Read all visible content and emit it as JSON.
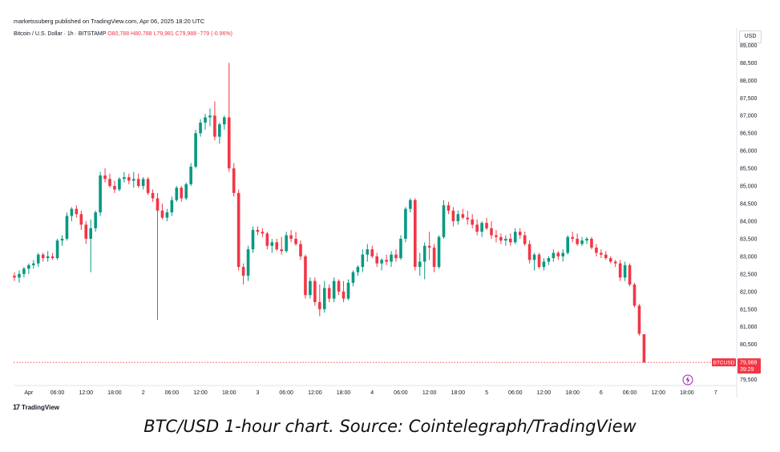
{
  "header": {
    "publisher": "marketssuberg published on TradingView.com, Apr 06, 2025 18:20 UTC",
    "symbol": "Bitcoin / U.S. Dollar · 1h · BITSTAMP",
    "open": "O80,788",
    "high": "H80,788",
    "low": "L79,981",
    "close": "C79,988",
    "change": "-779 (-0.96%)",
    "currency": "USD"
  },
  "footer": {
    "logo_text": "TradingView",
    "caption": "BTC/USD 1-hour chart. Source: Cointelegraph/TradingView"
  },
  "colors": {
    "up": "#089981",
    "down": "#f23645",
    "grid": "#f0f3fa",
    "text": "#131722"
  },
  "chart_data": {
    "type": "candlestick",
    "symbol": "BTCUSD",
    "interval": "1h",
    "ylim": [
      79400,
      89100
    ],
    "y_ticks": [
      79500,
      80500,
      81000,
      81500,
      82000,
      82500,
      83000,
      83500,
      84000,
      84500,
      85000,
      85500,
      86000,
      86500,
      87000,
      87500,
      88000,
      88500,
      89000
    ],
    "y_tick_labels": [
      "79,500",
      "80,500",
      "81,000",
      "81,500",
      "82,000",
      "82,500",
      "83,000",
      "83,500",
      "84,000",
      "84,500",
      "85,000",
      "85,500",
      "86,000",
      "86,500",
      "87,000",
      "87,500",
      "88,000",
      "88,500",
      "89,000"
    ],
    "x_tick_labels": [
      "Apr",
      "06:00",
      "12:00",
      "18:00",
      "2",
      "06:00",
      "12:00",
      "18:00",
      "3",
      "06:00",
      "12:00",
      "18:00",
      "4",
      "06:00",
      "12:00",
      "18:00",
      "5",
      "06:00",
      "12:00",
      "18:00",
      "6",
      "06:00",
      "12:00",
      "18:00",
      "7"
    ],
    "x_tick_index": [
      3,
      9,
      15,
      21,
      27,
      33,
      39,
      45,
      51,
      57,
      63,
      69,
      75,
      81,
      87,
      93,
      99,
      105,
      111,
      117,
      123,
      129,
      135,
      141,
      147
    ],
    "last_price_label": "BTCUSD",
    "last_price": "79,988",
    "last_price_value": 79988,
    "countdown": "39:29",
    "grid": true,
    "candles": [
      [
        82450,
        82550,
        82300,
        82400
      ],
      [
        82400,
        82600,
        82250,
        82500
      ],
      [
        82500,
        82700,
        82400,
        82650
      ],
      [
        82650,
        82800,
        82500,
        82750
      ],
      [
        82750,
        82900,
        82650,
        82800
      ],
      [
        82800,
        83100,
        82700,
        83050
      ],
      [
        83050,
        83100,
        82850,
        82950
      ],
      [
        82950,
        83150,
        82850,
        83000
      ],
      [
        83000,
        83100,
        82900,
        82950
      ],
      [
        82950,
        83500,
        82900,
        83450
      ],
      [
        83450,
        83600,
        83300,
        83500
      ],
      [
        83500,
        84250,
        83450,
        84150
      ],
      [
        84150,
        84400,
        84000,
        84350
      ],
      [
        84350,
        84450,
        84100,
        84200
      ],
      [
        84200,
        84300,
        83750,
        83900
      ],
      [
        83900,
        84000,
        83350,
        83500
      ],
      [
        83500,
        84050,
        82550,
        83800
      ],
      [
        83800,
        84300,
        83700,
        84250
      ],
      [
        84250,
        85400,
        84150,
        85300
      ],
      [
        85300,
        85500,
        85100,
        85200
      ],
      [
        85200,
        85350,
        84950,
        85000
      ],
      [
        85000,
        85150,
        84800,
        84900
      ],
      [
        84900,
        85250,
        84850,
        85200
      ],
      [
        85200,
        85400,
        85100,
        85250
      ],
      [
        85250,
        85350,
        85050,
        85150
      ],
      [
        85150,
        85400,
        84950,
        85200
      ],
      [
        85200,
        85350,
        84950,
        85000
      ],
      [
        85000,
        85250,
        84900,
        85200
      ],
      [
        85200,
        85250,
        84750,
        84800
      ],
      [
        84800,
        84900,
        84550,
        84650
      ],
      [
        84650,
        84800,
        81200,
        84300
      ],
      [
        84300,
        84500,
        84050,
        84100
      ],
      [
        84100,
        84350,
        84000,
        84250
      ],
      [
        84250,
        84700,
        84150,
        84600
      ],
      [
        84600,
        85000,
        84550,
        84950
      ],
      [
        84950,
        85000,
        84550,
        84650
      ],
      [
        84650,
        85100,
        84600,
        85050
      ],
      [
        85050,
        85650,
        85000,
        85550
      ],
      [
        85550,
        86600,
        85500,
        86500
      ],
      [
        86500,
        86900,
        86400,
        86800
      ],
      [
        86800,
        87050,
        86600,
        86950
      ],
      [
        86950,
        87200,
        86700,
        87000
      ],
      [
        87000,
        87400,
        86300,
        86400
      ],
      [
        86400,
        86800,
        86200,
        86750
      ],
      [
        86750,
        87000,
        86600,
        86950
      ],
      [
        86950,
        88500,
        85400,
        85500
      ],
      [
        85500,
        85650,
        84700,
        84800
      ],
      [
        84800,
        84900,
        82600,
        82700
      ],
      [
        82700,
        82800,
        82200,
        82450
      ],
      [
        82450,
        83300,
        82300,
        83200
      ],
      [
        83200,
        83850,
        83100,
        83750
      ],
      [
        83750,
        83850,
        83600,
        83700
      ],
      [
        83700,
        83800,
        83550,
        83650
      ],
      [
        83650,
        83700,
        83200,
        83300
      ],
      [
        83300,
        83500,
        83100,
        83400
      ],
      [
        83400,
        83500,
        83150,
        83200
      ],
      [
        83200,
        83550,
        83050,
        83150
      ],
      [
        83150,
        83700,
        83100,
        83600
      ],
      [
        83600,
        83750,
        83400,
        83500
      ],
      [
        83500,
        83700,
        83300,
        83350
      ],
      [
        83350,
        83450,
        82900,
        83000
      ],
      [
        83000,
        83050,
        81800,
        81900
      ],
      [
        81900,
        82400,
        81800,
        82300
      ],
      [
        82300,
        82400,
        81600,
        81700
      ],
      [
        81700,
        82200,
        81300,
        81500
      ],
      [
        81500,
        82300,
        81400,
        82100
      ],
      [
        82100,
        82200,
        81700,
        81800
      ],
      [
        81800,
        82400,
        81700,
        82300
      ],
      [
        82300,
        82350,
        81900,
        82000
      ],
      [
        82000,
        82300,
        81700,
        81800
      ],
      [
        81800,
        82350,
        81750,
        82250
      ],
      [
        82250,
        82600,
        82150,
        82550
      ],
      [
        82550,
        82750,
        82450,
        82700
      ],
      [
        82700,
        83200,
        82550,
        83050
      ],
      [
        83050,
        83350,
        82850,
        83200
      ],
      [
        83200,
        83300,
        82950,
        83000
      ],
      [
        83000,
        83100,
        82700,
        82800
      ],
      [
        82800,
        82950,
        82600,
        82900
      ],
      [
        82900,
        83050,
        82750,
        82850
      ],
      [
        82850,
        83150,
        82700,
        83050
      ],
      [
        83050,
        83200,
        82850,
        82950
      ],
      [
        82950,
        83600,
        82900,
        83500
      ],
      [
        83500,
        84400,
        83400,
        84350
      ],
      [
        84350,
        84650,
        84250,
        84600
      ],
      [
        84600,
        84650,
        82600,
        82700
      ],
      [
        82700,
        83100,
        82450,
        82850
      ],
      [
        82850,
        83400,
        82350,
        83300
      ],
      [
        83300,
        83700,
        82900,
        83250
      ],
      [
        83250,
        83350,
        82550,
        82700
      ],
      [
        82700,
        83600,
        82650,
        83550
      ],
      [
        83550,
        84600,
        83500,
        84450
      ],
      [
        84450,
        84550,
        84200,
        84300
      ],
      [
        84300,
        84400,
        83850,
        84000
      ],
      [
        84000,
        84300,
        83900,
        84200
      ],
      [
        84200,
        84350,
        84050,
        84100
      ],
      [
        84100,
        84300,
        83900,
        84050
      ],
      [
        84050,
        84200,
        83800,
        83900
      ],
      [
        83900,
        84050,
        83600,
        83700
      ],
      [
        83700,
        84000,
        83550,
        83950
      ],
      [
        83950,
        84100,
        83750,
        83800
      ],
      [
        83800,
        84000,
        83500,
        83600
      ],
      [
        83600,
        83750,
        83400,
        83550
      ],
      [
        83550,
        83650,
        83350,
        83450
      ],
      [
        83450,
        83600,
        83300,
        83500
      ],
      [
        83500,
        83650,
        83300,
        83400
      ],
      [
        83400,
        83800,
        83350,
        83700
      ],
      [
        83700,
        83800,
        83500,
        83600
      ],
      [
        83600,
        83700,
        83300,
        83350
      ],
      [
        83350,
        83450,
        82800,
        82900
      ],
      [
        82900,
        83100,
        82600,
        83050
      ],
      [
        83050,
        83100,
        82650,
        82700
      ],
      [
        82700,
        82950,
        82600,
        82850
      ],
      [
        82850,
        83000,
        82750,
        82950
      ],
      [
        82950,
        83200,
        82850,
        83100
      ],
      [
        83100,
        83150,
        82900,
        83000
      ],
      [
        83000,
        83200,
        82850,
        83100
      ],
      [
        83100,
        83600,
        83050,
        83550
      ],
      [
        83550,
        83700,
        83400,
        83500
      ],
      [
        83500,
        83650,
        83300,
        83350
      ],
      [
        83350,
        83550,
        83300,
        83450
      ],
      [
        83450,
        83550,
        83350,
        83500
      ],
      [
        83500,
        83550,
        83200,
        83250
      ],
      [
        83250,
        83350,
        83000,
        83100
      ],
      [
        83100,
        83200,
        82950,
        83050
      ],
      [
        83050,
        83150,
        82900,
        82950
      ],
      [
        82950,
        83000,
        82800,
        82850
      ],
      [
        82850,
        82900,
        82700,
        82800
      ],
      [
        82800,
        82900,
        82300,
        82400
      ],
      [
        82400,
        82850,
        82300,
        82750
      ],
      [
        82750,
        82800,
        82150,
        82200
      ],
      [
        82200,
        82250,
        81550,
        81600
      ],
      [
        81600,
        81650,
        80750,
        80800
      ],
      [
        80788,
        80788,
        79981,
        79988
      ]
    ]
  }
}
